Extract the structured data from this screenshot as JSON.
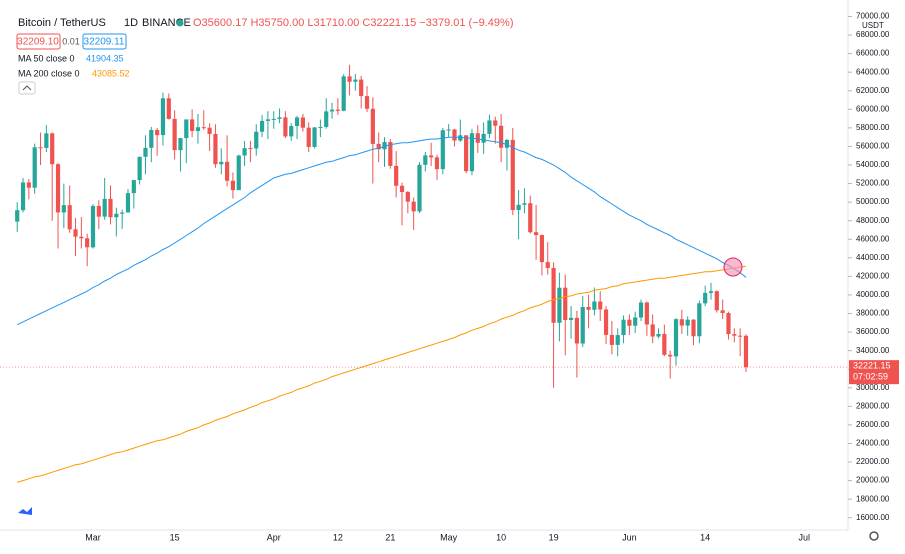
{
  "header": {
    "symbol": "Bitcoin / TetherUS",
    "interval": "1D",
    "exchange": "BINANCE",
    "ohlc": "O35600.17 H35750.00 L31710.00 C32221.15 −3379.01 (−9.49%)",
    "sell": "32209.10",
    "spread": "0.01",
    "buy": "32209.11",
    "countdown": "07:02:59",
    "currency": "USDT"
  },
  "chart_data": {
    "type": "candlestick",
    "up_color": "#26a69a",
    "down_color": "#ef5350",
    "grid": false,
    "categories": [
      null,
      null,
      null,
      null,
      null,
      null,
      null,
      null,
      null,
      null,
      null,
      null,
      null,
      "Mar",
      null,
      null,
      null,
      null,
      null,
      null,
      null,
      null,
      null,
      null,
      null,
      null,
      null,
      "15",
      null,
      null,
      null,
      null,
      null,
      null,
      null,
      null,
      null,
      null,
      null,
      null,
      null,
      null,
      null,
      null,
      "Apr",
      null,
      null,
      null,
      null,
      null,
      null,
      null,
      null,
      null,
      null,
      "12",
      null,
      null,
      null,
      null,
      null,
      null,
      null,
      null,
      "21",
      null,
      null,
      null,
      null,
      null,
      null,
      null,
      null,
      null,
      "May",
      null,
      null,
      null,
      null,
      null,
      null,
      null,
      null,
      "10",
      null,
      null,
      null,
      null,
      null,
      null,
      null,
      null,
      "19",
      null,
      null,
      null,
      null,
      null,
      null,
      null,
      null,
      null,
      null,
      null,
      null,
      "Jun",
      null,
      null,
      null,
      null,
      null,
      null,
      null,
      null,
      null,
      null,
      null,
      null,
      "14",
      null,
      null,
      null,
      null,
      null,
      null,
      null,
      null,
      null,
      null,
      null,
      null,
      null,
      null,
      null,
      null,
      "Jul",
      null,
      null,
      null,
      null,
      null,
      null,
      null
    ],
    "open": [
      47900,
      49133,
      52119,
      51552,
      55906,
      55841,
      57412,
      54087,
      48891,
      49676,
      47073,
      46276,
      46106,
      45135,
      49587,
      48440,
      50349,
      48374,
      48751,
      48882,
      50971,
      52375,
      54885,
      55851,
      57773,
      57221,
      61188,
      58968,
      55605,
      56900,
      58913,
      57665,
      58075,
      58020,
      57350,
      54084,
      54340,
      52303,
      51293,
      55025,
      55818,
      55778,
      57584,
      58747,
      58918,
      58970,
      59129,
      57081,
      58202,
      59123,
      58020,
      55947,
      58048,
      58102,
      59774,
      59964,
      59834,
      63554,
      62970,
      63204,
      61427,
      60058,
      56274,
      55696,
      56473,
      53906,
      51763,
      51093,
      50050,
      49004,
      54021,
      55033,
      54824,
      53555,
      57750,
      57828,
      56632,
      57200,
      53333,
      57424,
      56396,
      57356,
      58803,
      58232,
      55859,
      56704,
      49150,
      49716,
      49880,
      46760,
      46456,
      43538,
      42909,
      37002,
      40782,
      37304,
      37536,
      34770,
      38705,
      38402,
      39294,
      38436,
      35697,
      34616,
      35678,
      37332,
      36684,
      37575,
      39187,
      36825,
      35520,
      35796,
      33552,
      33380,
      37389,
      36702,
      37334,
      35552,
      39097,
      40219,
      40406,
      38347,
      38053,
      35787,
      35615,
      35600.17,
      null,
      null,
      null,
      null,
      null,
      null,
      null,
      null,
      null,
      null,
      null,
      null,
      null,
      null,
      null,
      null,
      null
    ],
    "high": [
      50000,
      52600,
      52500,
      56300,
      57500,
      58300,
      57500,
      54200,
      52000,
      51800,
      48300,
      48400,
      46600,
      49800,
      50200,
      52600,
      51800,
      49400,
      49200,
      51400,
      52400,
      54900,
      57200,
      58100,
      58000,
      61800,
      61700,
      59900,
      56900,
      58900,
      60000,
      59500,
      59900,
      58500,
      58400,
      55800,
      57200,
      53200,
      55100,
      56600,
      56600,
      58400,
      59400,
      59800,
      59800,
      60100,
      59800,
      58500,
      59300,
      59500,
      58600,
      58100,
      58900,
      61200,
      60700,
      61200,
      63800,
      64800,
      63800,
      63600,
      62500,
      61300,
      57500,
      57000,
      56800,
      55500,
      52100,
      51200,
      50500,
      54300,
      55400,
      56400,
      55100,
      58000,
      58400,
      57900,
      58900,
      57200,
      57900,
      58300,
      58600,
      59400,
      59200,
      59500,
      56800,
      58000,
      51300,
      51500,
      50700,
      49700,
      46500,
      45700,
      43500,
      42400,
      42200,
      38800,
      38300,
      39900,
      40000,
      40800,
      40400,
      38800,
      37200,
      36400,
      37800,
      37900,
      38200,
      39500,
      39300,
      37900,
      36400,
      36800,
      34000,
      37500,
      38400,
      37700,
      37400,
      39400,
      41000,
      41300,
      40500,
      39500,
      38200,
      36400,
      36400,
      35750,
      null,
      null,
      null,
      null,
      null,
      null,
      null,
      null,
      null,
      null,
      null,
      null,
      null,
      null,
      null,
      null,
      null
    ],
    "low": [
      46800,
      48900,
      50300,
      50900,
      54000,
      55400,
      48000,
      45000,
      47200,
      46700,
      44200,
      45000,
      43100,
      45000,
      47100,
      48100,
      47600,
      46300,
      47100,
      48900,
      49300,
      51900,
      53000,
      54300,
      55000,
      56100,
      58900,
      54600,
      53300,
      54200,
      57000,
      56300,
      57800,
      55500,
      53700,
      53000,
      51700,
      50400,
      51300,
      53900,
      54300,
      55000,
      57000,
      56800,
      57900,
      58500,
      56900,
      56600,
      56800,
      57600,
      55400,
      55800,
      57000,
      57900,
      59000,
      59400,
      59800,
      61500,
      62000,
      60100,
      59700,
      52000,
      54300,
      53800,
      53600,
      50500,
      47500,
      48800,
      47000,
      48800,
      53300,
      53900,
      52400,
      53000,
      57000,
      56000,
      56500,
      53100,
      52900,
      55300,
      55200,
      56900,
      56300,
      54300,
      53400,
      48600,
      46000,
      48800,
      46600,
      43800,
      42100,
      42200,
      30000,
      35000,
      33500,
      35300,
      31100,
      34400,
      36400,
      37800,
      37200,
      34700,
      33600,
      33400,
      34800,
      35700,
      35900,
      37200,
      35600,
      34800,
      35300,
      33400,
      31000,
      32400,
      35800,
      35600,
      34600,
      34800,
      38800,
      39500,
      38100,
      37400,
      35200,
      34900,
      33400,
      31710,
      null,
      null,
      null,
      null,
      null,
      null,
      null,
      null,
      null,
      null,
      null,
      null,
      null,
      null,
      null,
      null,
      null
    ],
    "close": [
      49133,
      52119,
      51552,
      55906,
      55841,
      57412,
      54087,
      48891,
      49676,
      47073,
      46276,
      46106,
      45135,
      49587,
      48440,
      50349,
      48374,
      48751,
      48882,
      50971,
      52375,
      54885,
      55851,
      57773,
      57221,
      61188,
      58968,
      55605,
      56900,
      58913,
      57665,
      58075,
      58020,
      57350,
      54084,
      54340,
      52303,
      51293,
      55025,
      55818,
      55778,
      57584,
      58747,
      58918,
      58970,
      59129,
      57081,
      58202,
      59123,
      58020,
      55947,
      58048,
      58102,
      59774,
      59964,
      59834,
      63554,
      62970,
      63204,
      61427,
      60058,
      56274,
      55696,
      56473,
      53906,
      51763,
      51093,
      50050,
      49004,
      54021,
      55033,
      54824,
      53555,
      57750,
      57828,
      56632,
      57200,
      53333,
      57424,
      56396,
      57356,
      58803,
      58232,
      55859,
      56704,
      49150,
      49716,
      49880,
      46760,
      46456,
      43538,
      42909,
      37002,
      40782,
      37304,
      37536,
      34770,
      38705,
      38402,
      39294,
      38436,
      35697,
      34616,
      35678,
      37332,
      36684,
      37575,
      39187,
      36825,
      35520,
      35796,
      33552,
      33380,
      37389,
      36702,
      37334,
      35552,
      39097,
      40219,
      40406,
      38347,
      38053,
      35787,
      35615,
      35600.17,
      32221.15,
      null,
      null,
      null,
      null,
      null,
      null,
      null,
      null,
      null,
      null,
      null,
      null,
      null,
      null,
      null,
      null,
      null
    ],
    "series": [
      {
        "name": "MA 50 close 0",
        "color": "#2196f3",
        "values": [
          36800,
          37100,
          37400,
          37700,
          38000,
          38300,
          38600,
          38900,
          39200,
          39500,
          39800,
          40100,
          40400,
          40800,
          41100,
          41500,
          41800,
          42200,
          42500,
          42800,
          43200,
          43500,
          43800,
          44200,
          44500,
          44900,
          45200,
          45600,
          46000,
          46400,
          46800,
          47200,
          47700,
          48100,
          48500,
          48900,
          49300,
          49700,
          50100,
          50500,
          51000,
          51400,
          51800,
          52200,
          52600,
          52800,
          53000,
          53100,
          53300,
          53500,
          53700,
          53900,
          54100,
          54300,
          54400,
          54600,
          54800,
          55000,
          55100,
          55300,
          55500,
          55700,
          55800,
          56000,
          56200,
          56300,
          56400,
          56400,
          56500,
          56600,
          56700,
          56800,
          56800,
          56900,
          57000,
          57000,
          57000,
          56900,
          56900,
          56800,
          56700,
          56600,
          56500,
          56400,
          56200,
          55900,
          55600,
          55400,
          55100,
          54800,
          54600,
          54300,
          54000,
          53600,
          53200,
          52700,
          52300,
          51900,
          51500,
          51100,
          50600,
          50200,
          49800,
          49400,
          49000,
          48600,
          48300,
          48000,
          47600,
          47300,
          47000,
          46700,
          46400,
          46000,
          45700,
          45400,
          45100,
          44800,
          44500,
          44200,
          43900,
          43500,
          43200,
          42800,
          42400,
          41904.35,
          null,
          null,
          null,
          null,
          null,
          null,
          null,
          null,
          null,
          null,
          null,
          null,
          null,
          null,
          null,
          null,
          null
        ]
      },
      {
        "name": "MA 200 close 0",
        "color": "#ff9800",
        "values": [
          19800,
          20000,
          20200,
          20400,
          20500,
          20700,
          20900,
          21100,
          21300,
          21500,
          21700,
          21800,
          22000,
          22200,
          22400,
          22600,
          22800,
          23000,
          23100,
          23300,
          23500,
          23700,
          23900,
          24100,
          24300,
          24400,
          24600,
          24800,
          25000,
          25300,
          25500,
          25700,
          26000,
          26200,
          26500,
          26700,
          26900,
          27200,
          27400,
          27600,
          27900,
          28100,
          28400,
          28600,
          28800,
          29100,
          29300,
          29500,
          29800,
          30000,
          30200,
          30500,
          30700,
          30900,
          31200,
          31400,
          31600,
          31800,
          32000,
          32200,
          32400,
          32600,
          32800,
          33000,
          33200,
          33400,
          33600,
          33800,
          34000,
          34200,
          34400,
          34600,
          34800,
          35000,
          35200,
          35400,
          35700,
          35900,
          36200,
          36400,
          36600,
          36900,
          37100,
          37400,
          37600,
          37800,
          38100,
          38300,
          38600,
          38800,
          39000,
          39300,
          39500,
          39600,
          39800,
          39900,
          40100,
          40200,
          40300,
          40500,
          40600,
          40700,
          40900,
          41000,
          41200,
          41300,
          41400,
          41500,
          41600,
          41700,
          41800,
          41800,
          41900,
          42000,
          42100,
          42200,
          42300,
          42400,
          42500,
          42500,
          42600,
          42700,
          42800,
          42900,
          43000,
          43085.52,
          null,
          null,
          null,
          null,
          null,
          null,
          null,
          null,
          null,
          null,
          null,
          null,
          null,
          null,
          null,
          null,
          null
        ]
      }
    ],
    "ylim": [
      15000,
      70700
    ],
    "yticks": [
      {
        "value": 16000,
        "label": "16000.00"
      },
      {
        "value": 18000,
        "label": "18000.00"
      },
      {
        "value": 20000,
        "label": "20000.00"
      },
      {
        "value": 22000,
        "label": "22000.00"
      },
      {
        "value": 24000,
        "label": "24000.00"
      },
      {
        "value": 26000,
        "label": "26000.00"
      },
      {
        "value": 28000,
        "label": "28000.00"
      },
      {
        "value": 30000,
        "label": "30000.00"
      },
      {
        "value": 32000,
        "label": "32000.00"
      },
      {
        "value": 34000,
        "label": "34000.00"
      },
      {
        "value": 36000,
        "label": "36000.00"
      },
      {
        "value": 38000,
        "label": "38000.00"
      },
      {
        "value": 40000,
        "label": "40000.00"
      },
      {
        "value": 42000,
        "label": "42000.00"
      },
      {
        "value": 44000,
        "label": "44000.00"
      },
      {
        "value": 46000,
        "label": "46000.00"
      },
      {
        "value": 48000,
        "label": "48000.00"
      },
      {
        "value": 50000,
        "label": "50000.00"
      },
      {
        "value": 52000,
        "label": "52000.00"
      },
      {
        "value": 54000,
        "label": "54000.00"
      },
      {
        "value": 56000,
        "label": "56000.00"
      },
      {
        "value": 58000,
        "label": "58000.00"
      },
      {
        "value": 60000,
        "label": "60000.00"
      },
      {
        "value": 62000,
        "label": "62000.00"
      },
      {
        "value": 64000,
        "label": "64000.00"
      },
      {
        "value": 66000,
        "label": "66000.00"
      },
      {
        "value": 68000,
        "label": "68000.00"
      },
      {
        "value": 70000,
        "label": "70000.00"
      }
    ]
  }
}
